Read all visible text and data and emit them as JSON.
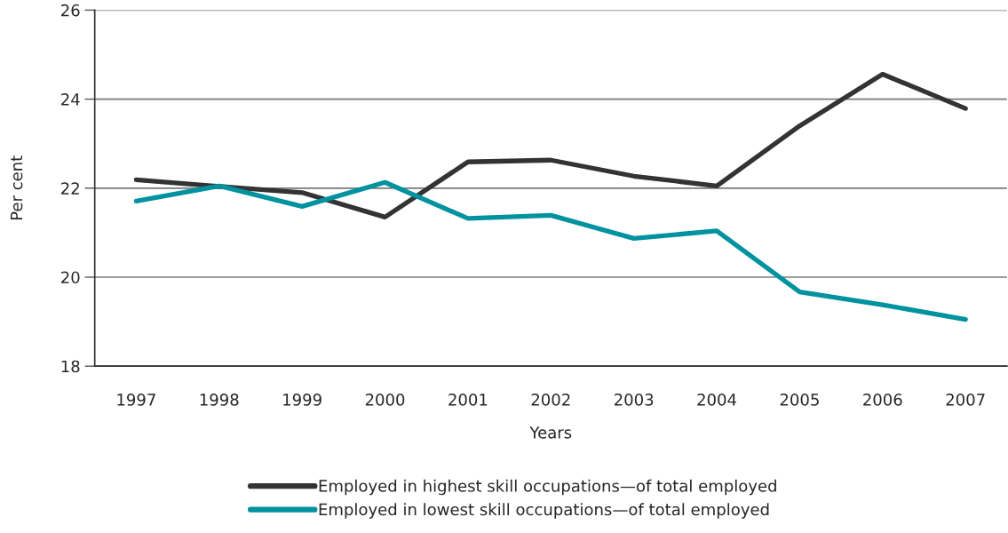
{
  "chart_data": {
    "type": "line",
    "xlabel": "Years",
    "ylabel": "Per cent",
    "categories": [
      "1997",
      "1998",
      "1999",
      "2000",
      "2001",
      "2002",
      "2003",
      "2004",
      "2005",
      "2006",
      "2007"
    ],
    "ylim": [
      18,
      26
    ],
    "yticks": [
      18,
      20,
      22,
      24,
      26
    ],
    "grid": "y",
    "legend": "bottom",
    "line_style": "solid",
    "series": [
      {
        "name": "Employed in highest skill occupations—of total employed",
        "color": "#333333",
        "values": [
          22.19,
          22.04,
          21.9,
          21.35,
          22.59,
          22.63,
          22.27,
          22.05,
          23.4,
          24.56,
          23.79
        ]
      },
      {
        "name": "Employed in lowest skill occupations—of total employed",
        "color": "#00929f",
        "values": [
          21.71,
          22.05,
          21.59,
          22.13,
          21.32,
          21.39,
          20.87,
          21.04,
          19.67,
          19.38,
          19.05
        ]
      }
    ]
  }
}
